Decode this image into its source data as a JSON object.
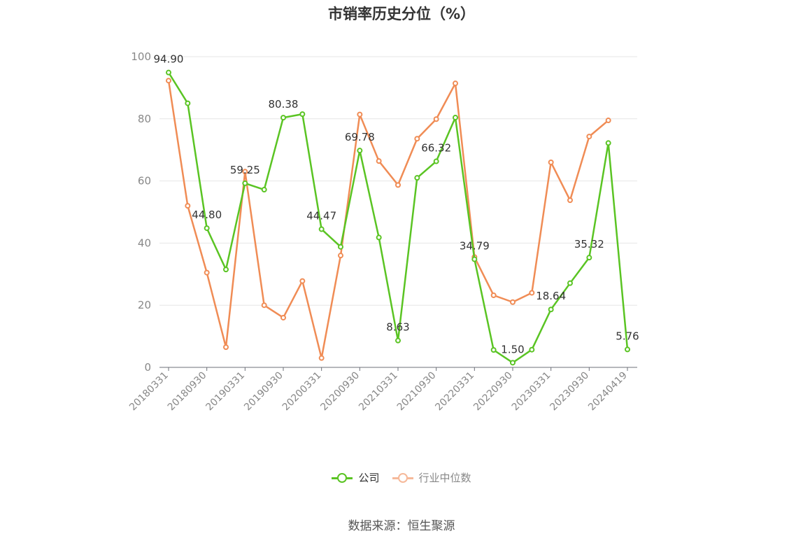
{
  "chart_data": {
    "type": "line",
    "title": "市销率历史分位（%）",
    "ylim": [
      0,
      100
    ],
    "yticks": [
      0,
      20,
      40,
      60,
      80,
      100
    ],
    "x": [
      "20180331",
      "20180630",
      "20180930",
      "20181231",
      "20190331",
      "20190630",
      "20190930",
      "20191231",
      "20200331",
      "20200630",
      "20200930",
      "20201231",
      "20210331",
      "20210630",
      "20210930",
      "20211231",
      "20220331",
      "20220630",
      "20220930",
      "20221231",
      "20230331",
      "20230630",
      "20230930",
      "20231231",
      "20240419"
    ],
    "xtick_labels": [
      "20180331",
      "20180930",
      "20190331",
      "20190930",
      "20200331",
      "20200930",
      "20210331",
      "20210930",
      "20220331",
      "20220930",
      "20230331",
      "20230930",
      "20240419"
    ],
    "grid": true,
    "legend_position": "bottom",
    "series": [
      {
        "name": "公司",
        "color": "#5ac423",
        "values": [
          94.9,
          85.0,
          44.8,
          31.5,
          59.25,
          57.2,
          80.38,
          81.5,
          44.47,
          38.8,
          69.78,
          41.8,
          8.63,
          61.0,
          66.32,
          80.4,
          34.79,
          5.6,
          1.5,
          5.7,
          18.64,
          27.1,
          35.32,
          72.2,
          5.76
        ],
        "labels": [
          "94.90",
          "",
          "44.80",
          "",
          "59.25",
          "",
          "80.38",
          "",
          "44.47",
          "",
          "69.78",
          "",
          "8.63",
          "",
          "66.32",
          "",
          "34.79",
          "",
          "1.50",
          "",
          "18.64",
          "",
          "35.32",
          "",
          "5.76"
        ]
      },
      {
        "name": "行业中位数",
        "color": "#f08c55",
        "values": [
          92.3,
          52.0,
          30.5,
          6.5,
          63.0,
          20.0,
          16.0,
          27.8,
          3.0,
          36.0,
          81.4,
          66.4,
          58.7,
          73.6,
          79.9,
          91.4,
          35.5,
          23.2,
          21.0,
          24.0,
          66.0,
          53.8,
          74.3,
          79.5,
          null
        ]
      }
    ]
  },
  "legend": {
    "series1": "公司",
    "series2": "行业中位数"
  },
  "source": "数据来源：恒生聚源"
}
